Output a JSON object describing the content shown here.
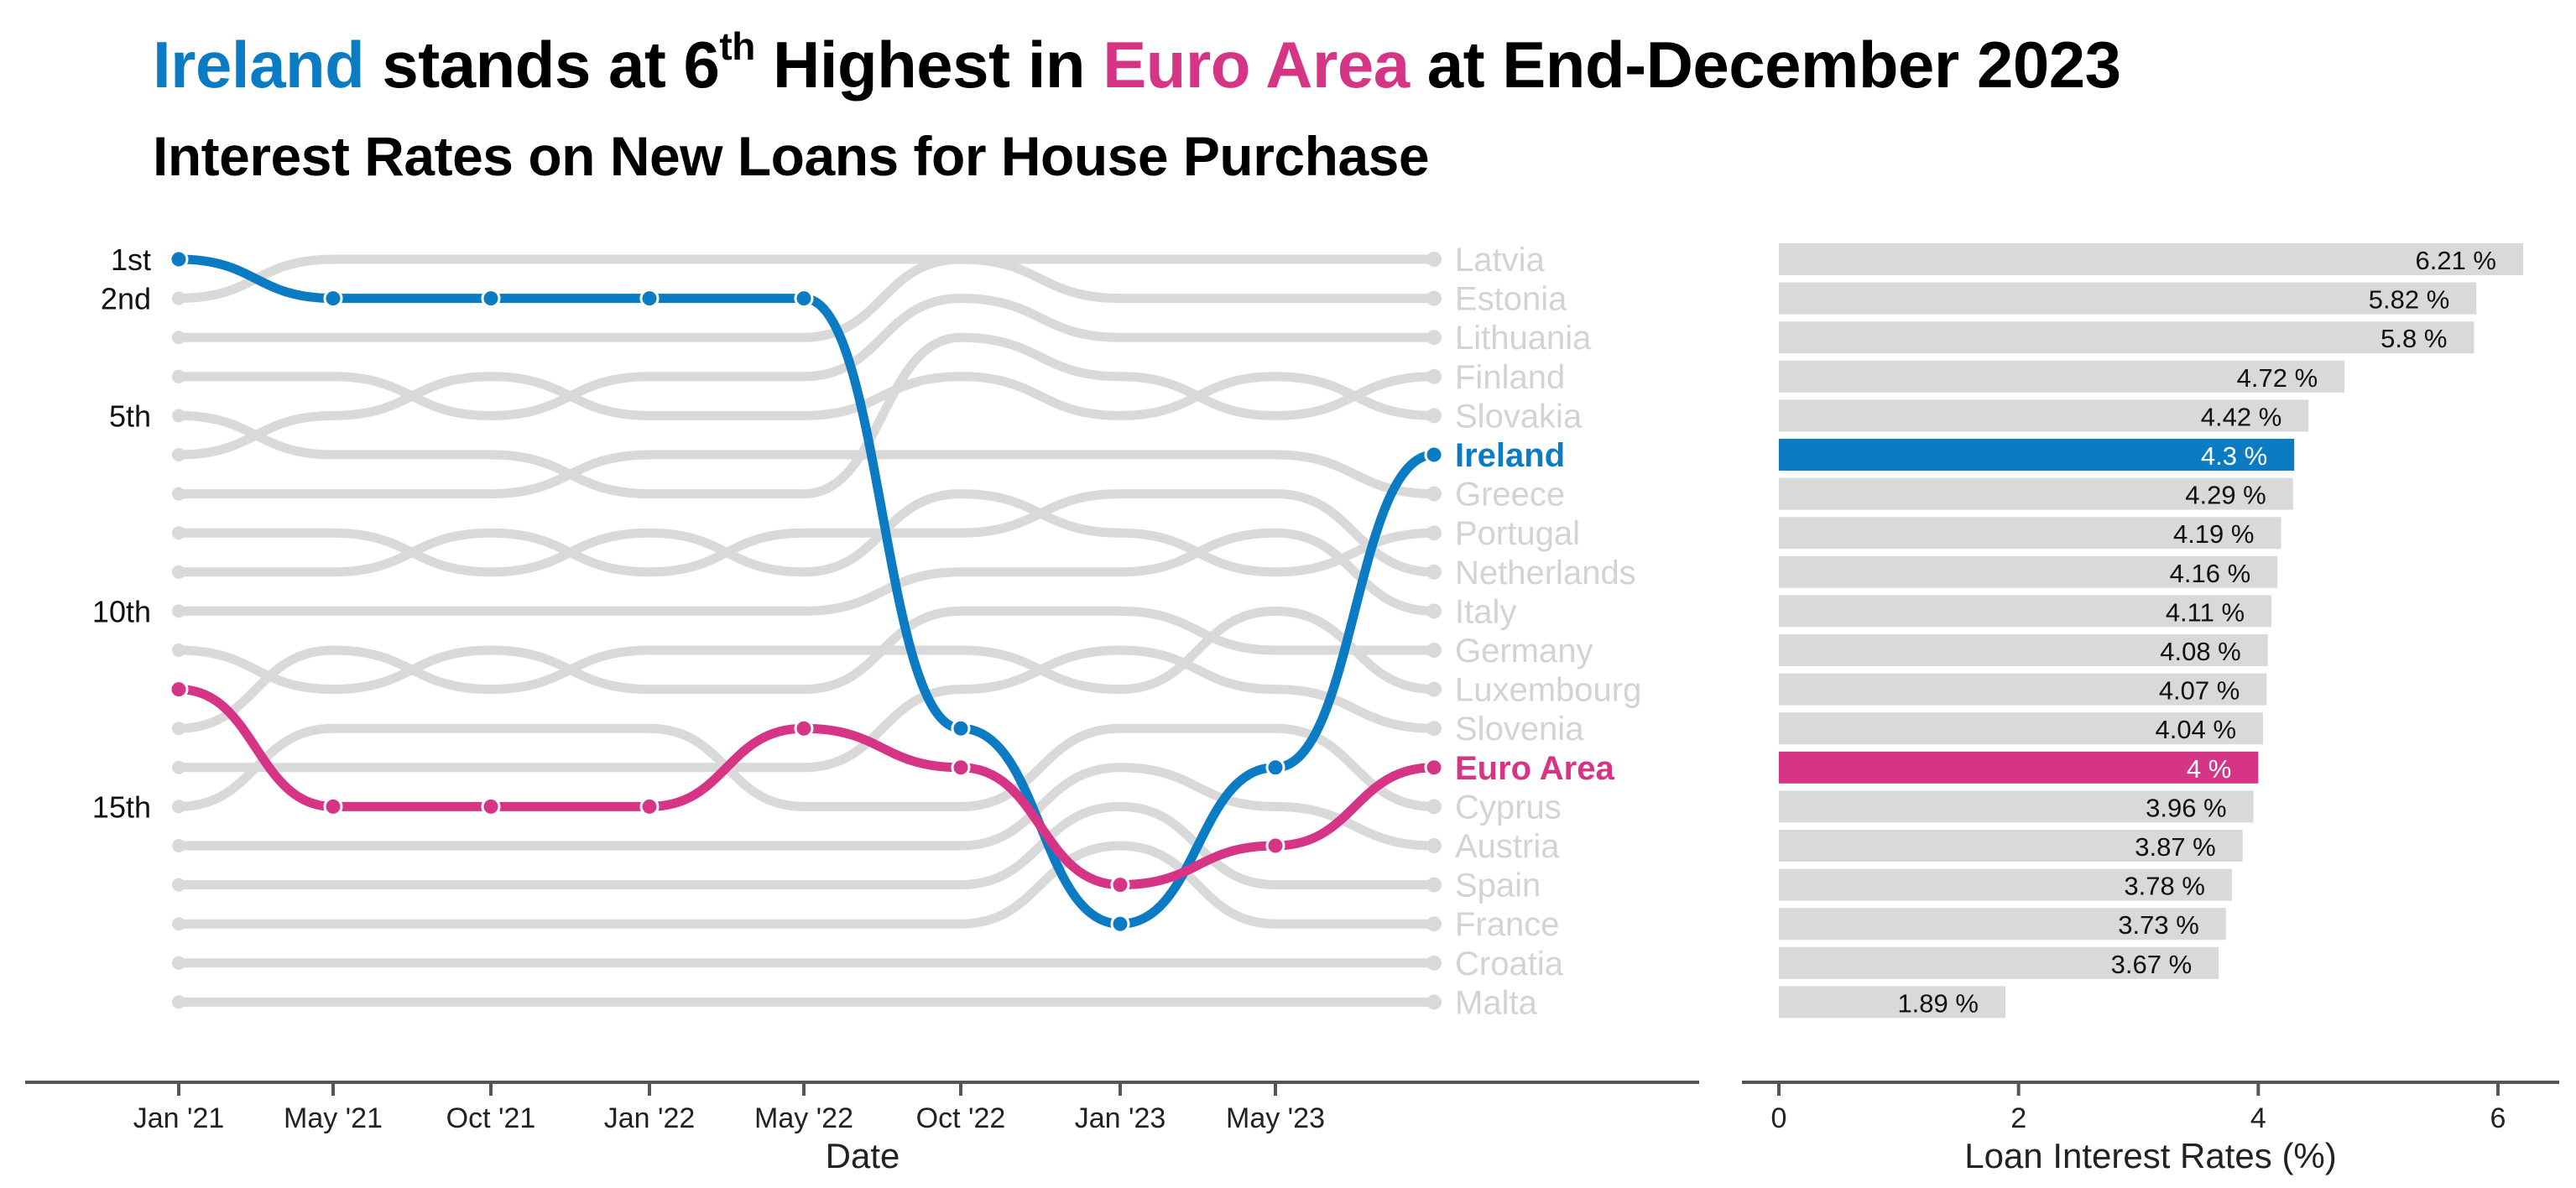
{
  "title": {
    "part1": "Ireland",
    "part2": " stands at 6",
    "sup": "th",
    "part3": " Highest in ",
    "part4": "Euro Area",
    "part5": " at End-December 2023"
  },
  "subtitle": "Interest Rates on New Loans for House Purchase",
  "colors": {
    "ireland": "#0b7cc4",
    "euro_area": "#d63585",
    "background_series": "#d9d9d9",
    "axis": "#555555"
  },
  "chart_data": [
    {
      "type": "line",
      "subtype": "bump",
      "xlabel": "Date",
      "x_ticks": [
        "Jan '21",
        "May '21",
        "Oct '21",
        "Jan '22",
        "May '22",
        "Oct '22",
        "Jan '23",
        "May '23"
      ],
      "y_rank_labels": [
        {
          "rank": 1,
          "label": "1st"
        },
        {
          "rank": 2,
          "label": "2nd"
        },
        {
          "rank": 5,
          "label": "5th"
        },
        {
          "rank": 10,
          "label": "10th"
        },
        {
          "rank": 15,
          "label": "15th"
        }
      ],
      "y_range_ranks": [
        1,
        20
      ],
      "series": [
        {
          "name": "Ireland",
          "highlight": true,
          "ranks": [
            1,
            2,
            2,
            2,
            2,
            13,
            18,
            14,
            6
          ]
        },
        {
          "name": "Euro Area",
          "highlight": true,
          "ranks": [
            12,
            15,
            15,
            15,
            13,
            14,
            17,
            16,
            14
          ]
        }
      ],
      "end_labels": [
        "Latvia",
        "Estonia",
        "Lithuania",
        "Finland",
        "Slovakia",
        "Ireland",
        "Greece",
        "Portugal",
        "Netherlands",
        "Italy",
        "Germany",
        "Luxembourg",
        "Slovenia",
        "Euro Area",
        "Cyprus",
        "Austria",
        "Spain",
        "France",
        "Croatia",
        "Malta"
      ]
    },
    {
      "type": "bar",
      "orientation": "horizontal",
      "xlabel": "Loan Interest Rates (%)",
      "xlim": [
        0,
        6.4
      ],
      "x_ticks": [
        0,
        2,
        4,
        6
      ],
      "categories": [
        "Latvia",
        "Estonia",
        "Lithuania",
        "Finland",
        "Slovakia",
        "Ireland",
        "Greece",
        "Portugal",
        "Netherlands",
        "Italy",
        "Germany",
        "Luxembourg",
        "Slovenia",
        "Euro Area",
        "Cyprus",
        "Austria",
        "Spain",
        "France",
        "Croatia",
        "Malta"
      ],
      "values": [
        6.21,
        5.82,
        5.8,
        4.72,
        4.42,
        4.3,
        4.29,
        4.19,
        4.16,
        4.11,
        4.08,
        4.07,
        4.04,
        4.0,
        3.96,
        3.87,
        3.78,
        3.73,
        3.67,
        1.89
      ],
      "value_labels": [
        "6.21 %",
        "5.82 %",
        "5.8 %",
        "4.72 %",
        "4.42 %",
        "4.3 %",
        "4.29 %",
        "4.19 %",
        "4.16 %",
        "4.11 %",
        "4.08 %",
        "4.07 %",
        "4.04 %",
        "4 %",
        "3.96 %",
        "3.87 %",
        "3.78 %",
        "3.73 %",
        "3.67 %",
        "1.89 %"
      ]
    }
  ]
}
